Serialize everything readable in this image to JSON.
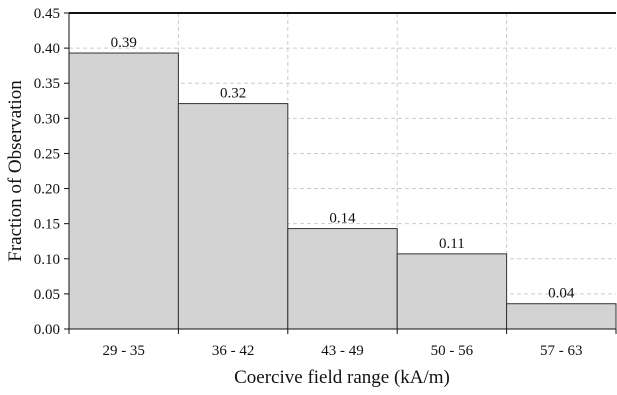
{
  "chart_data": {
    "type": "bar",
    "categories": [
      "29 - 35",
      "36 - 42",
      "43 - 49",
      "50 - 56",
      "57 - 63"
    ],
    "values": [
      0.393,
      0.321,
      0.143,
      0.107,
      0.036
    ],
    "data_labels": [
      "0.39",
      "0.32",
      "0.14",
      "0.11",
      "0.04"
    ],
    "title": "",
    "xlabel": "Coercive field range (kA/m)",
    "ylabel": "Fraction of Observation",
    "ylim": [
      0,
      0.45
    ],
    "yticks": [
      0.0,
      0.05,
      0.1,
      0.15,
      0.2,
      0.25,
      0.3,
      0.35,
      0.4,
      0.45
    ],
    "ytick_labels": [
      "0.00",
      "0.05",
      "0.10",
      "0.15",
      "0.20",
      "0.25",
      "0.30",
      "0.35",
      "0.40",
      "0.45"
    ],
    "grid": true,
    "bar_color": "#d3d3d3",
    "bar_edge_color": "#333333",
    "grid_color": "#cccccc"
  }
}
